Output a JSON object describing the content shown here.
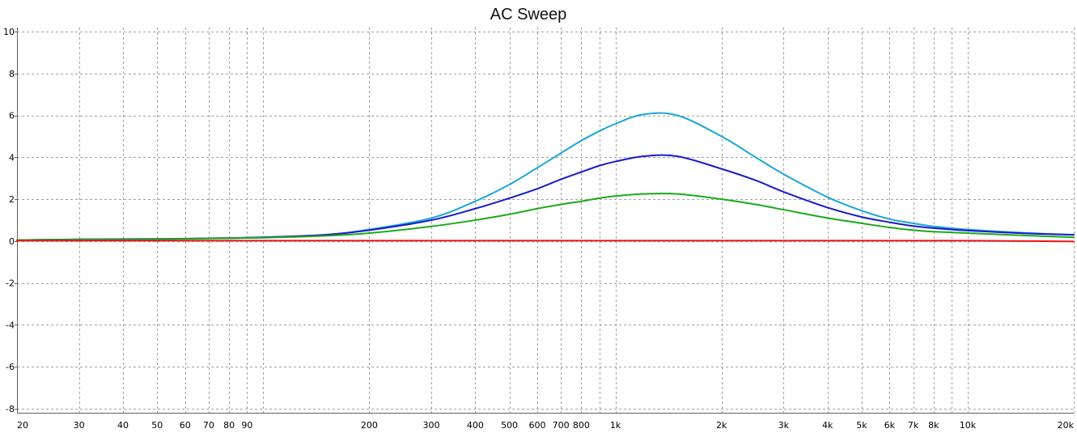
{
  "chart_data": {
    "type": "line",
    "title": "AC Sweep",
    "xlabel": "",
    "ylabel": "",
    "x_scale": "log",
    "xlim": [
      20,
      20000
    ],
    "ylim": [
      -8.2,
      10.2
    ],
    "grid": true,
    "legend": "none",
    "x_ticks": [
      {
        "value": 20,
        "label": "20"
      },
      {
        "value": 30,
        "label": "30"
      },
      {
        "value": 40,
        "label": "40"
      },
      {
        "value": 50,
        "label": "50"
      },
      {
        "value": 60,
        "label": "60"
      },
      {
        "value": 70,
        "label": "70"
      },
      {
        "value": 80,
        "label": "80"
      },
      {
        "value": 90,
        "label": "90"
      },
      {
        "value": 200,
        "label": "200"
      },
      {
        "value": 300,
        "label": "300"
      },
      {
        "value": 400,
        "label": "400"
      },
      {
        "value": 500,
        "label": "500"
      },
      {
        "value": 600,
        "label": "600"
      },
      {
        "value": 700,
        "label": "700"
      },
      {
        "value": 800,
        "label": "800"
      },
      {
        "value": 1000,
        "label": "1k"
      },
      {
        "value": 2000,
        "label": "2k"
      },
      {
        "value": 3000,
        "label": "3k"
      },
      {
        "value": 4000,
        "label": "4k"
      },
      {
        "value": 5000,
        "label": "5k"
      },
      {
        "value": 6000,
        "label": "6k"
      },
      {
        "value": 7000,
        "label": "7k"
      },
      {
        "value": 8000,
        "label": "8k"
      },
      {
        "value": 10000,
        "label": "10k"
      },
      {
        "value": 20000,
        "label": "20k"
      }
    ],
    "x_gridlines": [
      20,
      30,
      40,
      50,
      60,
      70,
      80,
      90,
      100,
      200,
      300,
      400,
      500,
      600,
      700,
      800,
      900,
      1000,
      2000,
      3000,
      4000,
      5000,
      6000,
      7000,
      8000,
      9000,
      10000,
      20000
    ],
    "y_ticks": [
      {
        "value": 10,
        "label": "10"
      },
      {
        "value": 8,
        "label": "8"
      },
      {
        "value": 6,
        "label": "6"
      },
      {
        "value": 4,
        "label": "4"
      },
      {
        "value": 2,
        "label": "2"
      },
      {
        "value": 0,
        "label": "0"
      },
      {
        "value": -2,
        "label": "-2"
      },
      {
        "value": -4,
        "label": "-4"
      },
      {
        "value": -6,
        "label": "-6"
      },
      {
        "value": -8,
        "label": "-8"
      }
    ],
    "x": [
      20,
      30,
      50,
      70,
      100,
      150,
      200,
      300,
      400,
      500,
      600,
      700,
      800,
      900,
      1000,
      1200,
      1500,
      2000,
      2500,
      3000,
      4000,
      5000,
      6000,
      7000,
      8000,
      10000,
      15000,
      20000
    ],
    "series": [
      {
        "color": "#1aa6d8",
        "values": [
          0.05,
          0.08,
          0.1,
          0.13,
          0.18,
          0.3,
          0.55,
          1.1,
          1.9,
          2.7,
          3.5,
          4.2,
          4.8,
          5.25,
          5.6,
          6.05,
          6.0,
          5.0,
          4.0,
          3.2,
          2.1,
          1.45,
          1.05,
          0.85,
          0.7,
          0.55,
          0.38,
          0.3
        ]
      },
      {
        "color": "#1a1acc",
        "values": [
          0.05,
          0.08,
          0.1,
          0.13,
          0.18,
          0.3,
          0.52,
          1.0,
          1.55,
          2.05,
          2.5,
          2.95,
          3.3,
          3.6,
          3.8,
          4.05,
          4.05,
          3.45,
          2.9,
          2.35,
          1.6,
          1.15,
          0.9,
          0.72,
          0.62,
          0.5,
          0.36,
          0.3
        ]
      },
      {
        "color": "#1aaa1a",
        "values": [
          0.05,
          0.07,
          0.09,
          0.12,
          0.16,
          0.25,
          0.38,
          0.7,
          1.0,
          1.28,
          1.55,
          1.75,
          1.9,
          2.05,
          2.15,
          2.25,
          2.25,
          2.0,
          1.75,
          1.5,
          1.1,
          0.85,
          0.65,
          0.52,
          0.45,
          0.38,
          0.26,
          0.18
        ]
      },
      {
        "color": "#ee1111",
        "values": [
          0.02,
          0.02,
          0.02,
          0.02,
          0.02,
          0.02,
          0.02,
          0.02,
          0.02,
          0.02,
          0.02,
          0.02,
          0.02,
          0.02,
          0.02,
          0.02,
          0.02,
          0.02,
          0.02,
          0.02,
          0.02,
          0.02,
          0.02,
          0.02,
          0.02,
          0.02,
          0.0,
          -0.02
        ]
      }
    ],
    "colors": {
      "grid": "#a0a0a0",
      "axis": "#606060"
    }
  }
}
